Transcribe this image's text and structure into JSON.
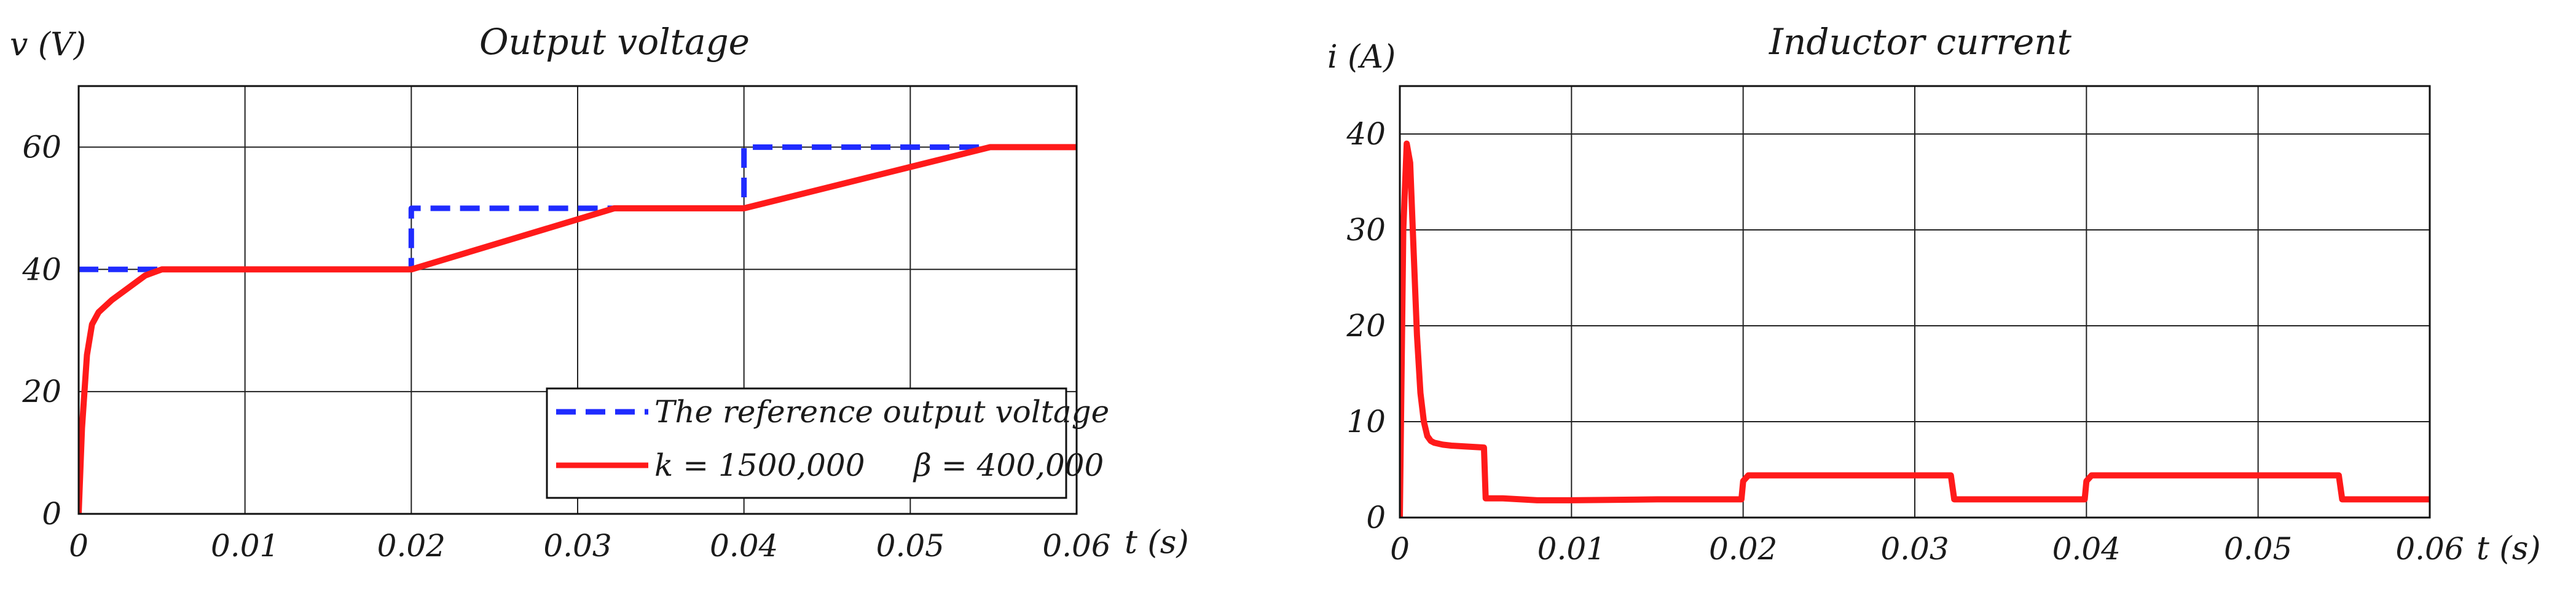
{
  "chart_data": [
    {
      "type": "line",
      "title": "Output    voltage",
      "xlabel": "t (s)",
      "ylabel": "v (V)",
      "xlim": [
        0,
        0.06
      ],
      "ylim": [
        0,
        70
      ],
      "xticks": [
        0,
        0.01,
        0.02,
        0.03,
        0.04,
        0.05,
        0.06
      ],
      "xtick_labels": [
        "0",
        "0.01",
        "0.02",
        "0.03",
        "0.04",
        "0.05",
        "0.06"
      ],
      "yticks": [
        0,
        20,
        40,
        60
      ],
      "ytick_labels": [
        "0",
        "20",
        "40",
        "60"
      ],
      "grid": true,
      "legend_position": "bottom-right",
      "series": [
        {
          "name": "The reference output voltage",
          "color": "#1f2bff",
          "style": "dashed",
          "x": [
            0,
            0.02,
            0.02,
            0.04,
            0.04,
            0.06
          ],
          "y": [
            40,
            40,
            50,
            50,
            60,
            60
          ]
        },
        {
          "name": "k = 1500,000     β = 400,000",
          "color": "#ff1a1a",
          "style": "solid",
          "x": [
            0,
            0.0002,
            0.0005,
            0.0008,
            0.0012,
            0.002,
            0.003,
            0.004,
            0.005,
            0.02,
            0.0322,
            0.04,
            0.0548,
            0.06
          ],
          "y": [
            0,
            14,
            26,
            31,
            33,
            35,
            37,
            39,
            40,
            40,
            50,
            50,
            60,
            60
          ]
        }
      ]
    },
    {
      "type": "line",
      "title": "Inductor    current",
      "xlabel": "t (s)",
      "ylabel": "i (A)",
      "xlim": [
        0,
        0.06
      ],
      "ylim": [
        0,
        45
      ],
      "xticks": [
        0,
        0.01,
        0.02,
        0.03,
        0.04,
        0.05,
        0.06
      ],
      "xtick_labels": [
        "0",
        "0.01",
        "0.02",
        "0.03",
        "0.04",
        "0.05",
        "0.06"
      ],
      "yticks": [
        0,
        10,
        20,
        30,
        40
      ],
      "ytick_labels": [
        "0",
        "10",
        "20",
        "30",
        "40"
      ],
      "grid": true,
      "series": [
        {
          "name": "Inductor current",
          "color": "#ff1a1a",
          "style": "solid",
          "x": [
            0,
            0.0002,
            0.0004,
            0.0006,
            0.0008,
            0.001,
            0.0012,
            0.0014,
            0.0016,
            0.0018,
            0.002,
            0.0025,
            0.003,
            0.004,
            0.0049,
            0.005,
            0.006,
            0.008,
            0.01,
            0.015,
            0.0199,
            0.02,
            0.0203,
            0.025,
            0.03,
            0.0321,
            0.0323,
            0.035,
            0.0399,
            0.04,
            0.0403,
            0.045,
            0.05,
            0.0547,
            0.0549,
            0.06
          ],
          "y": [
            0,
            30,
            39,
            37,
            28,
            19,
            13,
            10,
            8.5,
            8,
            7.8,
            7.6,
            7.5,
            7.4,
            7.3,
            2,
            2,
            1.8,
            1.8,
            1.9,
            1.9,
            3.8,
            4.4,
            4.4,
            4.4,
            4.4,
            1.9,
            1.9,
            1.9,
            3.8,
            4.4,
            4.4,
            4.4,
            4.4,
            1.9,
            1.9
          ]
        }
      ]
    }
  ],
  "colors": {
    "reference": "#1f2bff",
    "response": "#ff1a1a",
    "grid": "#222222"
  }
}
